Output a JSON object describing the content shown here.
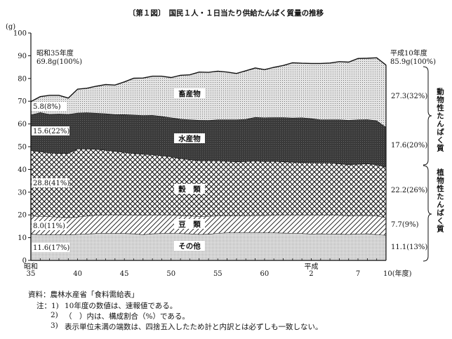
{
  "chart_data": {
    "type": "area",
    "stacked": true,
    "title": "〔第１図〕　国民１人・１日当たり供給たんぱく質量の推移",
    "ylabel": "(g)",
    "xlabel": "(年度)",
    "ylim": [
      0,
      100
    ],
    "yticks": [
      0,
      10,
      20,
      30,
      40,
      50,
      60,
      70,
      80,
      90,
      100
    ],
    "x": [
      1960,
      1961,
      1962,
      1963,
      1964,
      1965,
      1966,
      1967,
      1968,
      1969,
      1970,
      1971,
      1972,
      1973,
      1974,
      1975,
      1976,
      1977,
      1978,
      1979,
      1980,
      1981,
      1982,
      1983,
      1984,
      1985,
      1986,
      1987,
      1988,
      1989,
      1990,
      1991,
      1992,
      1993,
      1994,
      1995,
      1996,
      1997,
      1998
    ],
    "xticks": [
      {
        "x": 1960,
        "era": "昭和",
        "label": "35"
      },
      {
        "x": 1965,
        "label": "40"
      },
      {
        "x": 1970,
        "label": "45"
      },
      {
        "x": 1975,
        "label": "50"
      },
      {
        "x": 1980,
        "label": "55"
      },
      {
        "x": 1985,
        "label": "60"
      },
      {
        "x": 1990,
        "era": "平成",
        "label": "2"
      },
      {
        "x": 1995,
        "label": "7"
      },
      {
        "x": 1998,
        "label": "10(年度)"
      }
    ],
    "series": [
      {
        "name": "その他",
        "values": [
          11.6,
          11.4,
          11.3,
          11.4,
          11.3,
          11.5,
          11.7,
          11.9,
          12.0,
          11.9,
          11.9,
          11.8,
          11.4,
          11.8,
          11.9,
          12.0,
          11.9,
          11.8,
          11.5,
          11.6,
          12.0,
          12.2,
          12.2,
          12.3,
          12.3,
          12.2,
          12.2,
          12.1,
          12.0,
          11.9,
          11.7,
          11.8,
          11.7,
          11.6,
          11.5,
          11.7,
          11.8,
          11.4,
          11.1
        ],
        "start_label": "11.6(17%)",
        "end_label": "11.1(13%)"
      },
      {
        "name": "豆　類",
        "values": [
          8.0,
          8.0,
          8.0,
          7.7,
          7.6,
          7.6,
          7.9,
          8.0,
          8.1,
          8.2,
          8.2,
          8.2,
          8.5,
          8.2,
          8.1,
          8.0,
          7.9,
          7.8,
          7.9,
          7.9,
          7.6,
          7.4,
          7.4,
          7.4,
          7.5,
          7.6,
          7.7,
          7.9,
          8.0,
          8.1,
          8.3,
          8.2,
          8.4,
          8.3,
          8.1,
          8.1,
          8.0,
          8.3,
          7.7
        ],
        "start_label": "8.0(11%)",
        "end_label": "7.7(9%)"
      },
      {
        "name": "穀　類",
        "values": [
          28.8,
          28.4,
          28.0,
          28.0,
          28.2,
          30.0,
          29.4,
          29.0,
          28.4,
          27.9,
          27.4,
          27.1,
          26.8,
          26.5,
          26.1,
          25.6,
          25.0,
          24.7,
          24.5,
          24.4,
          24.3,
          24.0,
          23.8,
          23.8,
          24.0,
          23.7,
          23.7,
          23.4,
          23.2,
          23.1,
          23.0,
          22.9,
          22.8,
          22.6,
          22.5,
          22.5,
          22.7,
          22.4,
          22.2
        ],
        "start_label": "28.8(41%)",
        "end_label": "22.2(26%)"
      },
      {
        "name": "水産物",
        "values": [
          15.6,
          17.3,
          17.0,
          17.3,
          17.2,
          15.8,
          16.0,
          15.9,
          16.1,
          16.2,
          16.7,
          16.9,
          17.1,
          17.4,
          17.3,
          17.2,
          17.4,
          17.6,
          17.8,
          17.7,
          18.0,
          18.3,
          18.5,
          18.6,
          19.2,
          19.3,
          19.3,
          19.5,
          19.5,
          19.7,
          19.4,
          19.0,
          19.0,
          19.4,
          19.6,
          19.6,
          19.5,
          19.4,
          17.6
        ],
        "start_label": "15.6(22%)",
        "end_label": "17.6(20%)"
      },
      {
        "name": "畜産物",
        "values": [
          5.8,
          6.9,
          8.3,
          8.2,
          7.1,
          10.4,
          10.7,
          11.8,
          12.7,
          12.9,
          14.3,
          16.1,
          16.4,
          17.1,
          17.6,
          17.6,
          19.2,
          19.7,
          21.1,
          21.1,
          21.3,
          20.9,
          20.3,
          21.3,
          21.6,
          21.1,
          22.0,
          22.8,
          24.2,
          23.9,
          24.2,
          24.7,
          24.9,
          25.5,
          25.5,
          26.9,
          26.9,
          27.6,
          27.3
        ],
        "start_label": "5.8(8%)",
        "end_label": "27.3(32%)"
      }
    ],
    "start_annotation": {
      "year": "昭和35年度",
      "total": "69.8g(100%)"
    },
    "end_annotation": {
      "year": "平成10年度",
      "total": "85.9g(100%)"
    },
    "groups": [
      {
        "name": "動物性たんぱく質"
      },
      {
        "name": "植物性たんぱく質"
      }
    ]
  },
  "notes": {
    "source": "資料：農林水産省「食料需給表」",
    "note_prefix": "注：1)",
    "note1": "10年度の数値は、速報値である。",
    "note2_num": "2)",
    "note2": "（　）内は、構成割合（%）である。",
    "note3_num": "3)",
    "note3": "表示単位未満の端数は、四捨五入したため計と内訳とは必ずしも一致しない。"
  },
  "colors": {
    "meat": "#cfcfcf",
    "fish": "#3b3b3b",
    "cereal": "#ffffff",
    "beans": "#ffffff",
    "other": "#d9d9d9",
    "line": "#111111"
  }
}
